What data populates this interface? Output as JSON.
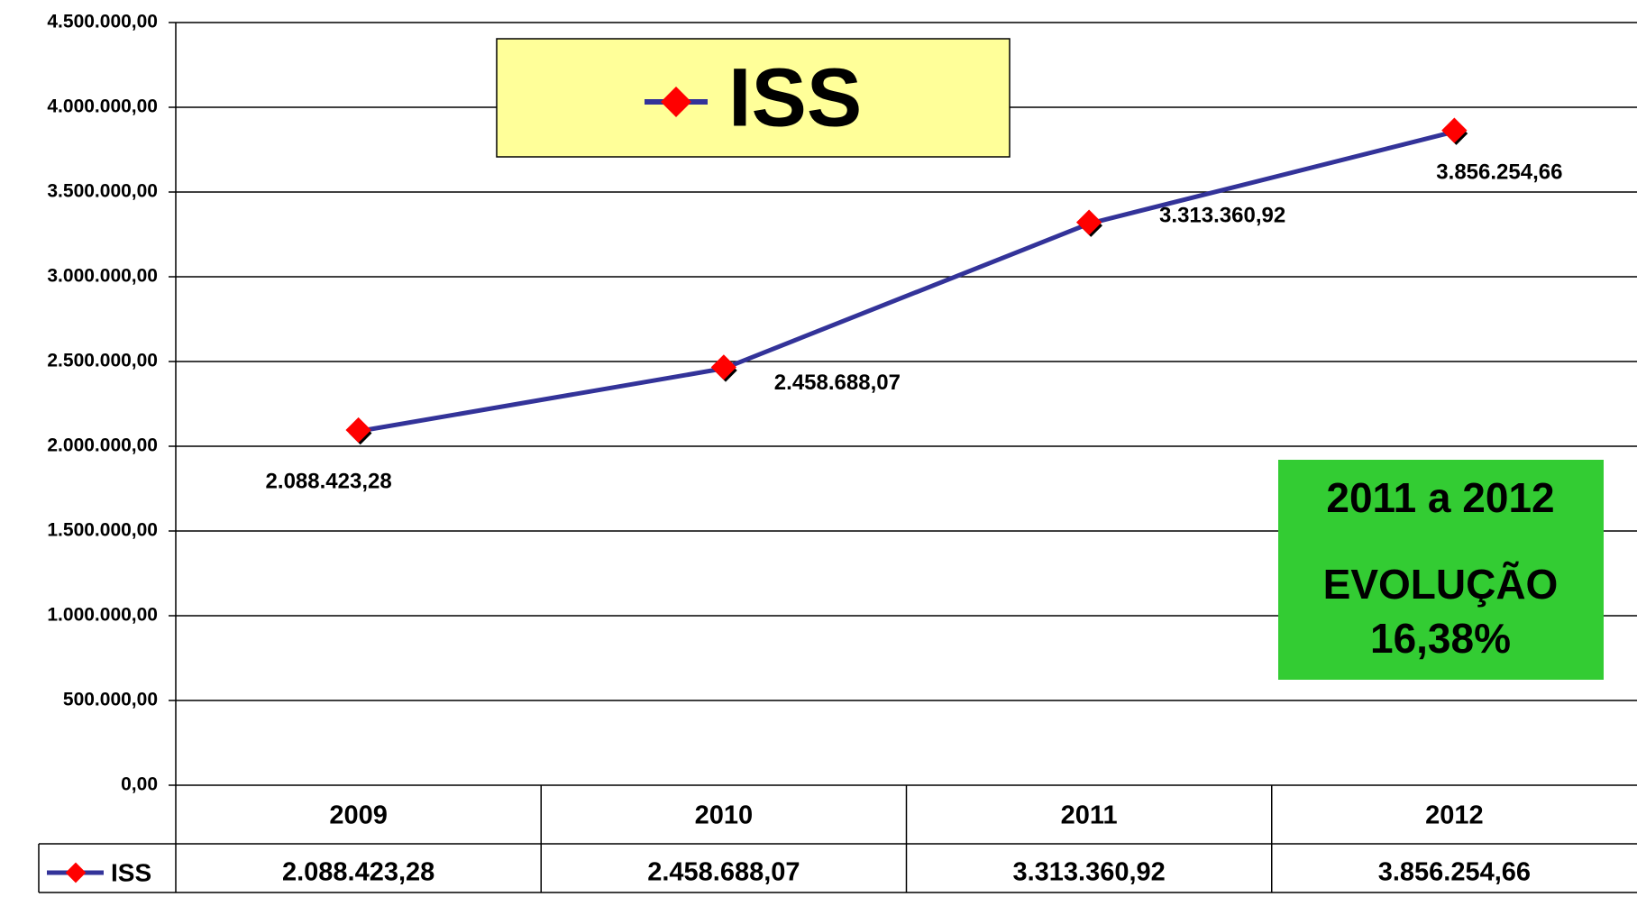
{
  "chart_data": {
    "type": "line",
    "categories": [
      "2009",
      "2010",
      "2011",
      "2012"
    ],
    "series": [
      {
        "name": "ISS",
        "color": "#333399",
        "marker_color": "#ff0000",
        "values": [
          2088423.28,
          2458688.07,
          3313360.92,
          3856254.66
        ],
        "value_labels": [
          "2.088.423,28",
          "2.458.688,07",
          "3.313.360,92",
          "3.856.254,66"
        ]
      }
    ],
    "ylim": [
      0,
      4500000
    ],
    "yticks": [
      {
        "value": 0,
        "label": "0,00"
      },
      {
        "value": 500000,
        "label": "500.000,00"
      },
      {
        "value": 1000000,
        "label": "1.000.000,00"
      },
      {
        "value": 1500000,
        "label": "1.500.000,00"
      },
      {
        "value": 2000000,
        "label": "2.000.000,00"
      },
      {
        "value": 2500000,
        "label": "2.500.000,00"
      },
      {
        "value": 3000000,
        "label": "3.000.000,00"
      },
      {
        "value": 3500000,
        "label": "3.500.000,00"
      },
      {
        "value": 4000000,
        "label": "4.000.000,00"
      },
      {
        "value": 4500000,
        "label": "4.500.000,00"
      }
    ],
    "grid": true,
    "annotations": [
      "2011 a 2012",
      "EVOLUÇÃO",
      "16,38%"
    ]
  }
}
